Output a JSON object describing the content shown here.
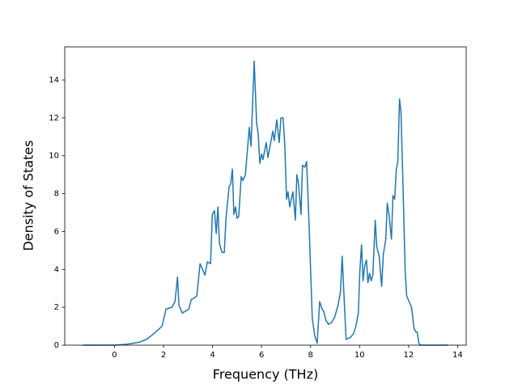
{
  "chart_data": {
    "type": "line",
    "xlabel": "Frequency (THz)",
    "ylabel": "Density of States",
    "x": [
      -1.28,
      -1.0,
      -0.5,
      0.0,
      0.5,
      1.0,
      1.3,
      1.6,
      1.94,
      2.1,
      2.34,
      2.47,
      2.57,
      2.63,
      2.77,
      3.03,
      3.13,
      3.26,
      3.36,
      3.49,
      3.59,
      3.69,
      3.79,
      3.92,
      3.99,
      4.08,
      4.15,
      4.22,
      4.28,
      4.38,
      4.48,
      4.55,
      4.68,
      4.74,
      4.81,
      4.87,
      4.94,
      5.0,
      5.07,
      5.17,
      5.24,
      5.34,
      5.5,
      5.57,
      5.7,
      5.8,
      5.86,
      5.93,
      6.0,
      6.06,
      6.13,
      6.19,
      6.26,
      6.36,
      6.46,
      6.52,
      6.62,
      6.72,
      6.79,
      6.88,
      6.95,
      7.02,
      7.08,
      7.15,
      7.28,
      7.38,
      7.44,
      7.51,
      7.61,
      7.67,
      7.77,
      7.84,
      7.94,
      8.07,
      8.17,
      8.27,
      8.37,
      8.47,
      8.53,
      8.63,
      8.73,
      8.86,
      8.99,
      9.12,
      9.22,
      9.29,
      9.35,
      9.45,
      9.62,
      9.75,
      9.85,
      9.95,
      10.01,
      10.08,
      10.14,
      10.21,
      10.28,
      10.34,
      10.41,
      10.47,
      10.54,
      10.64,
      10.7,
      10.8,
      10.9,
      10.97,
      11.07,
      11.13,
      11.2,
      11.3,
      11.36,
      11.43,
      11.5,
      11.56,
      11.63,
      11.69,
      11.76,
      11.86,
      11.92,
      12.02,
      12.12,
      12.22,
      12.29,
      12.35,
      12.42,
      12.48,
      13.0,
      13.6
    ],
    "values": [
      0,
      0,
      0,
      0,
      0.05,
      0.15,
      0.3,
      0.6,
      1.0,
      1.9,
      2.0,
      2.3,
      3.6,
      2.1,
      1.7,
      1.9,
      2.4,
      2.5,
      2.6,
      4.3,
      4.0,
      3.7,
      4.4,
      4.3,
      6.9,
      7.1,
      5.9,
      7.3,
      5.4,
      4.9,
      4.9,
      6.7,
      8.4,
      8.5,
      9.3,
      6.9,
      7.3,
      6.7,
      6.8,
      8.9,
      8.7,
      9.0,
      11.5,
      10.5,
      15.0,
      11.7,
      11.2,
      9.6,
      10.1,
      9.8,
      10.3,
      10.7,
      9.9,
      10.6,
      11.3,
      10.8,
      11.9,
      10.7,
      12.0,
      12.0,
      10.5,
      7.7,
      8.1,
      7.3,
      8.1,
      6.6,
      9.0,
      8.5,
      6.9,
      9.5,
      9.4,
      9.7,
      6.3,
      1.4,
      0.5,
      0.1,
      2.3,
      1.9,
      1.8,
      1.3,
      1.1,
      1.2,
      1.5,
      2.1,
      2.8,
      4.7,
      3.0,
      0.3,
      0.4,
      0.6,
      1.0,
      1.7,
      3.9,
      5.3,
      3.4,
      4.2,
      4.5,
      3.3,
      3.8,
      3.4,
      3.7,
      6.6,
      5.2,
      4.7,
      3.1,
      4.8,
      5.6,
      7.5,
      6.9,
      5.6,
      7.9,
      7.7,
      9.3,
      9.7,
      13.0,
      12.3,
      9.0,
      3.9,
      2.6,
      2.3,
      2.0,
      0.9,
      0.7,
      0.7,
      0.1,
      0,
      0,
      0
    ],
    "color": "#1f77b4",
    "xlim": [
      -2.03,
      14.35
    ],
    "xticks": [
      0,
      2,
      4,
      6,
      8,
      10,
      12,
      14
    ],
    "ylim": [
      0,
      15.75
    ],
    "yticks": [
      0,
      2,
      4,
      6,
      8,
      10,
      12,
      14
    ]
  }
}
